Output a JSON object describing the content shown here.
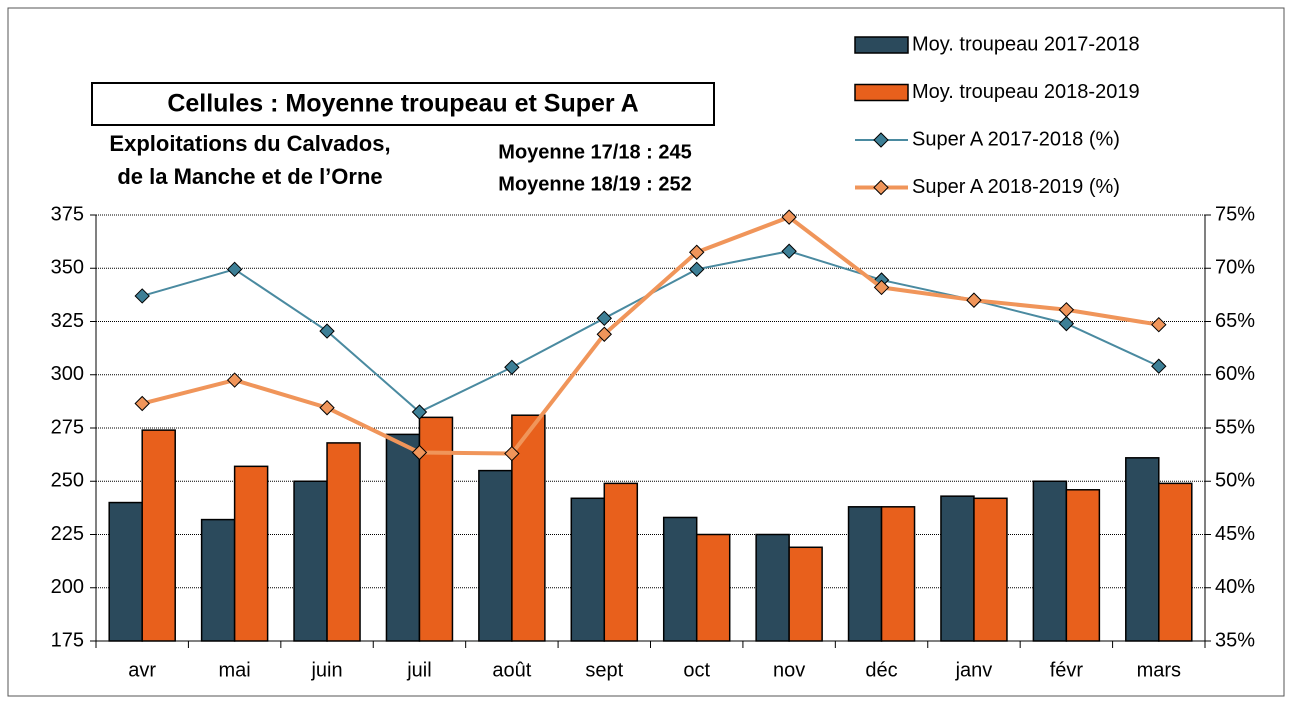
{
  "chart_data": {
    "type": "bar",
    "title": "Cellules : Moyenne troupeau et Super A",
    "annotations": [
      {
        "text": "Exploitations du Calvados,",
        "color": "#f5b324"
      },
      {
        "text": "de la Manche et de l’Orne",
        "color": "#f5b324"
      },
      {
        "text": "Moyenne 17/18 : 245",
        "color": "#3d6a80"
      },
      {
        "text": "Moyenne 18/19 : 252",
        "color": "#e8601c"
      }
    ],
    "categories": [
      "avr",
      "mai",
      "juin",
      "juil",
      "août",
      "sept",
      "oct",
      "nov",
      "déc",
      "janv",
      "févr",
      "mars"
    ],
    "series": [
      {
        "name": "Moy. troupeau 2017-2018",
        "type": "bar",
        "color": "#2b4a5c",
        "values": [
          240,
          232,
          250,
          272,
          255,
          242,
          233,
          225,
          238,
          243,
          250,
          261
        ]
      },
      {
        "name": "Moy. troupeau 2018-2019",
        "type": "bar",
        "color": "#e8601c",
        "values": [
          274,
          257,
          268,
          280,
          281,
          249,
          225,
          219,
          238,
          242,
          246,
          249
        ]
      },
      {
        "name": "Super A 2017-2018 (%)",
        "type": "line",
        "axis": "y2",
        "color": "#4a8aa0",
        "marker": "#3d7f96",
        "values": [
          67.4,
          69.9,
          64.1,
          56.5,
          60.7,
          65.3,
          69.9,
          71.6,
          68.9,
          67.0,
          64.8,
          60.8
        ]
      },
      {
        "name": "Super A 2018-2019 (%)",
        "type": "line",
        "axis": "y2",
        "color": "#f0955a",
        "marker": "#f0955a",
        "values": [
          57.3,
          59.5,
          56.9,
          52.7,
          52.6,
          63.8,
          71.5,
          74.8,
          68.2,
          67.0,
          66.1,
          64.7
        ]
      }
    ],
    "ylim": [
      175,
      375
    ],
    "yticks": [
      175,
      200,
      225,
      250,
      275,
      300,
      325,
      350,
      375
    ],
    "y2lim": [
      35,
      75
    ],
    "y2ticks": [
      {
        "value": 35,
        "label": "35%"
      },
      {
        "value": 40,
        "label": "40%"
      },
      {
        "value": 45,
        "label": "45%"
      },
      {
        "value": 50,
        "label": "50%"
      },
      {
        "value": 55,
        "label": "55%"
      },
      {
        "value": 60,
        "label": "60%"
      },
      {
        "value": 65,
        "label": "65%"
      },
      {
        "value": 70,
        "label": "70%"
      },
      {
        "value": 75,
        "label": "75%"
      }
    ],
    "grid": true,
    "legend": "top-right"
  }
}
